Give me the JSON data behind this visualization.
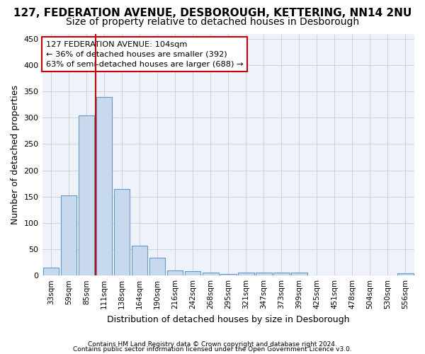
{
  "title": "127, FEDERATION AVENUE, DESBOROUGH, KETTERING, NN14 2NU",
  "subtitle": "Size of property relative to detached houses in Desborough",
  "xlabel": "Distribution of detached houses by size in Desborough",
  "ylabel": "Number of detached properties",
  "footer_line1": "Contains HM Land Registry data © Crown copyright and database right 2024.",
  "footer_line2": "Contains public sector information licensed under the Open Government Licence v3.0.",
  "categories": [
    "33sqm",
    "59sqm",
    "85sqm",
    "111sqm",
    "138sqm",
    "164sqm",
    "190sqm",
    "216sqm",
    "242sqm",
    "268sqm",
    "295sqm",
    "321sqm",
    "347sqm",
    "373sqm",
    "399sqm",
    "425sqm",
    "451sqm",
    "478sqm",
    "504sqm",
    "530sqm",
    "556sqm"
  ],
  "values": [
    15,
    153,
    305,
    340,
    165,
    57,
    34,
    10,
    8,
    5,
    3,
    5,
    5,
    5,
    5,
    0,
    0,
    0,
    0,
    0,
    4
  ],
  "bar_color": "#c9d9ed",
  "bar_edge_color": "#6699cc",
  "ylim": [
    0,
    460
  ],
  "yticks": [
    0,
    50,
    100,
    150,
    200,
    250,
    300,
    350,
    400,
    450
  ],
  "annotation_line1": "127 FEDERATION AVENUE: 104sqm",
  "annotation_line2": "← 36% of detached houses are smaller (392)",
  "annotation_line3": "63% of semi-detached houses are larger (688) →",
  "vline_color": "#cc0000",
  "grid_color": "#cccccc",
  "background_color": "#eef2fa",
  "title_fontsize": 11,
  "subtitle_fontsize": 10
}
